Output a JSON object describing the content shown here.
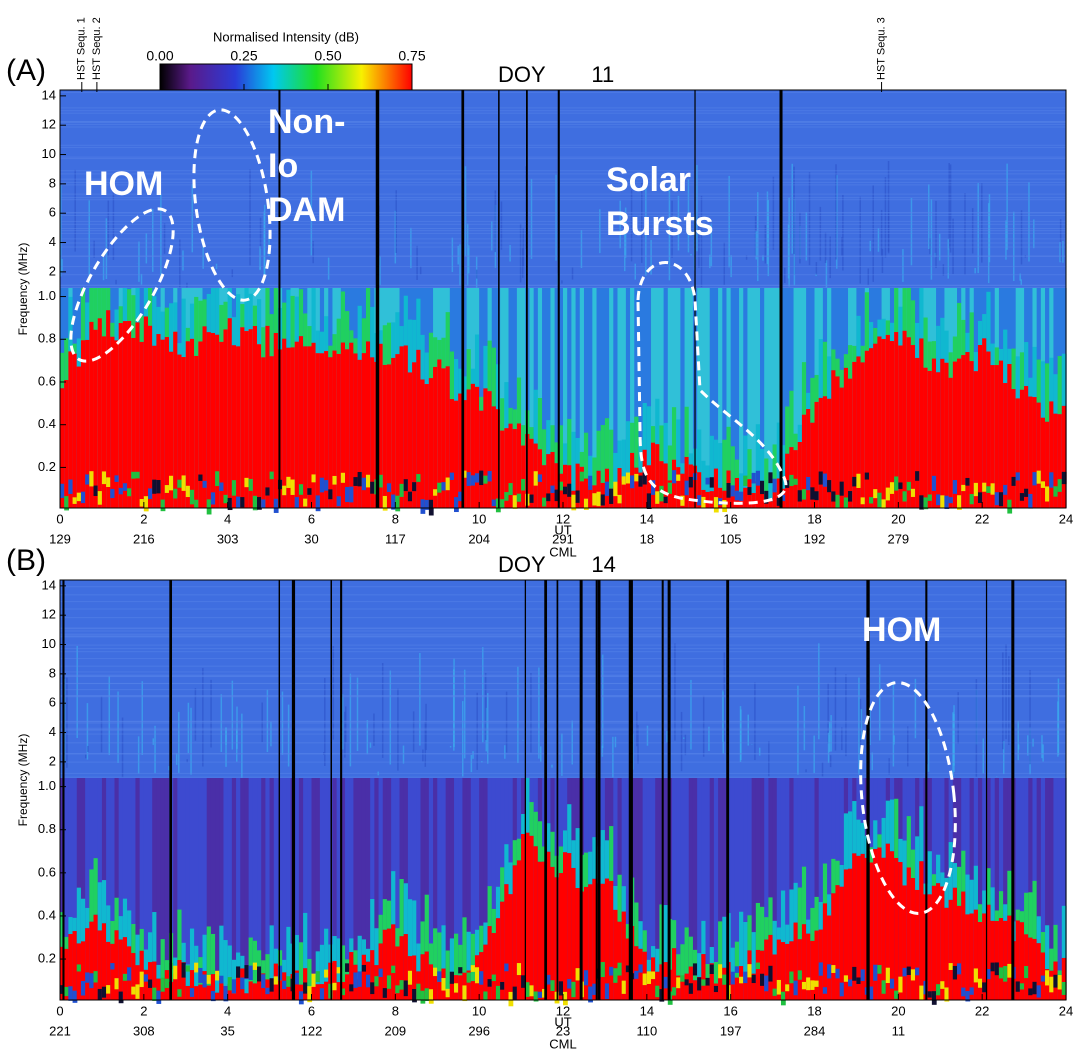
{
  "colorbar": {
    "title": "Normalised Intensity (dB)",
    "lim": [
      0,
      0.75
    ],
    "ticks": [
      {
        "value": 0,
        "label": "0.00"
      },
      {
        "value": 0.25,
        "label": "0.25"
      },
      {
        "value": 0.5,
        "label": "0.50"
      },
      {
        "value": 0.75,
        "label": "0.75"
      }
    ]
  },
  "chart_data": [
    {
      "type": "spectrogram",
      "panel_label": "(A)",
      "title": "DOY 11",
      "xlabel": "UT",
      "x2label": "CML",
      "ylabel": "Frequency (MHz)",
      "xlim": [
        0,
        24
      ],
      "xticks": [
        0,
        2,
        4,
        6,
        8,
        10,
        12,
        14,
        16,
        18,
        20,
        22,
        24
      ],
      "cml": [
        129,
        216,
        303,
        30,
        117,
        204,
        291,
        18,
        105,
        192,
        279
      ],
      "ylim_upper": [
        0.9,
        14.4
      ],
      "yticks_upper": [
        2,
        4,
        6,
        8,
        10,
        12,
        14
      ],
      "ylim_lower": [
        0.01,
        1.04
      ],
      "yticks_lower": [
        0.2,
        0.4,
        0.6,
        0.8,
        {
          "value": 1,
          "label": "1.0"
        }
      ],
      "markers": [
        {
          "label": "HST Sequ. 1",
          "x": 0.52
        },
        {
          "label": "HST Sequ. 2",
          "x": 0.88
        },
        {
          "label": "HST Sequ. 3",
          "x": 19.6
        }
      ],
      "annotations": [
        [
          "HOM"
        ],
        [
          "Non-",
          "Io",
          "DAM"
        ],
        [
          "Solar",
          "Bursts"
        ]
      ]
    },
    {
      "type": "spectrogram",
      "panel_label": "(B)",
      "title": "DOY 14",
      "xlabel": "UT",
      "x2label": "CML",
      "ylabel": "Frequency (MHz)",
      "xlim": [
        0,
        24
      ],
      "xticks": [
        0,
        2,
        4,
        6,
        8,
        10,
        12,
        14,
        16,
        18,
        20,
        22,
        24
      ],
      "cml": [
        221,
        308,
        35,
        122,
        209,
        296,
        23,
        110,
        197,
        284,
        11
      ],
      "ylim_upper": [
        0.9,
        14.4
      ],
      "yticks_upper": [
        2,
        4,
        6,
        8,
        10,
        12,
        14
      ],
      "ylim_lower": [
        0.01,
        1.04
      ],
      "yticks_lower": [
        0.2,
        0.4,
        0.6,
        0.8,
        {
          "value": 1,
          "label": "1.0"
        }
      ],
      "markers": [],
      "annotations": [
        [
          "HOM"
        ]
      ]
    }
  ]
}
